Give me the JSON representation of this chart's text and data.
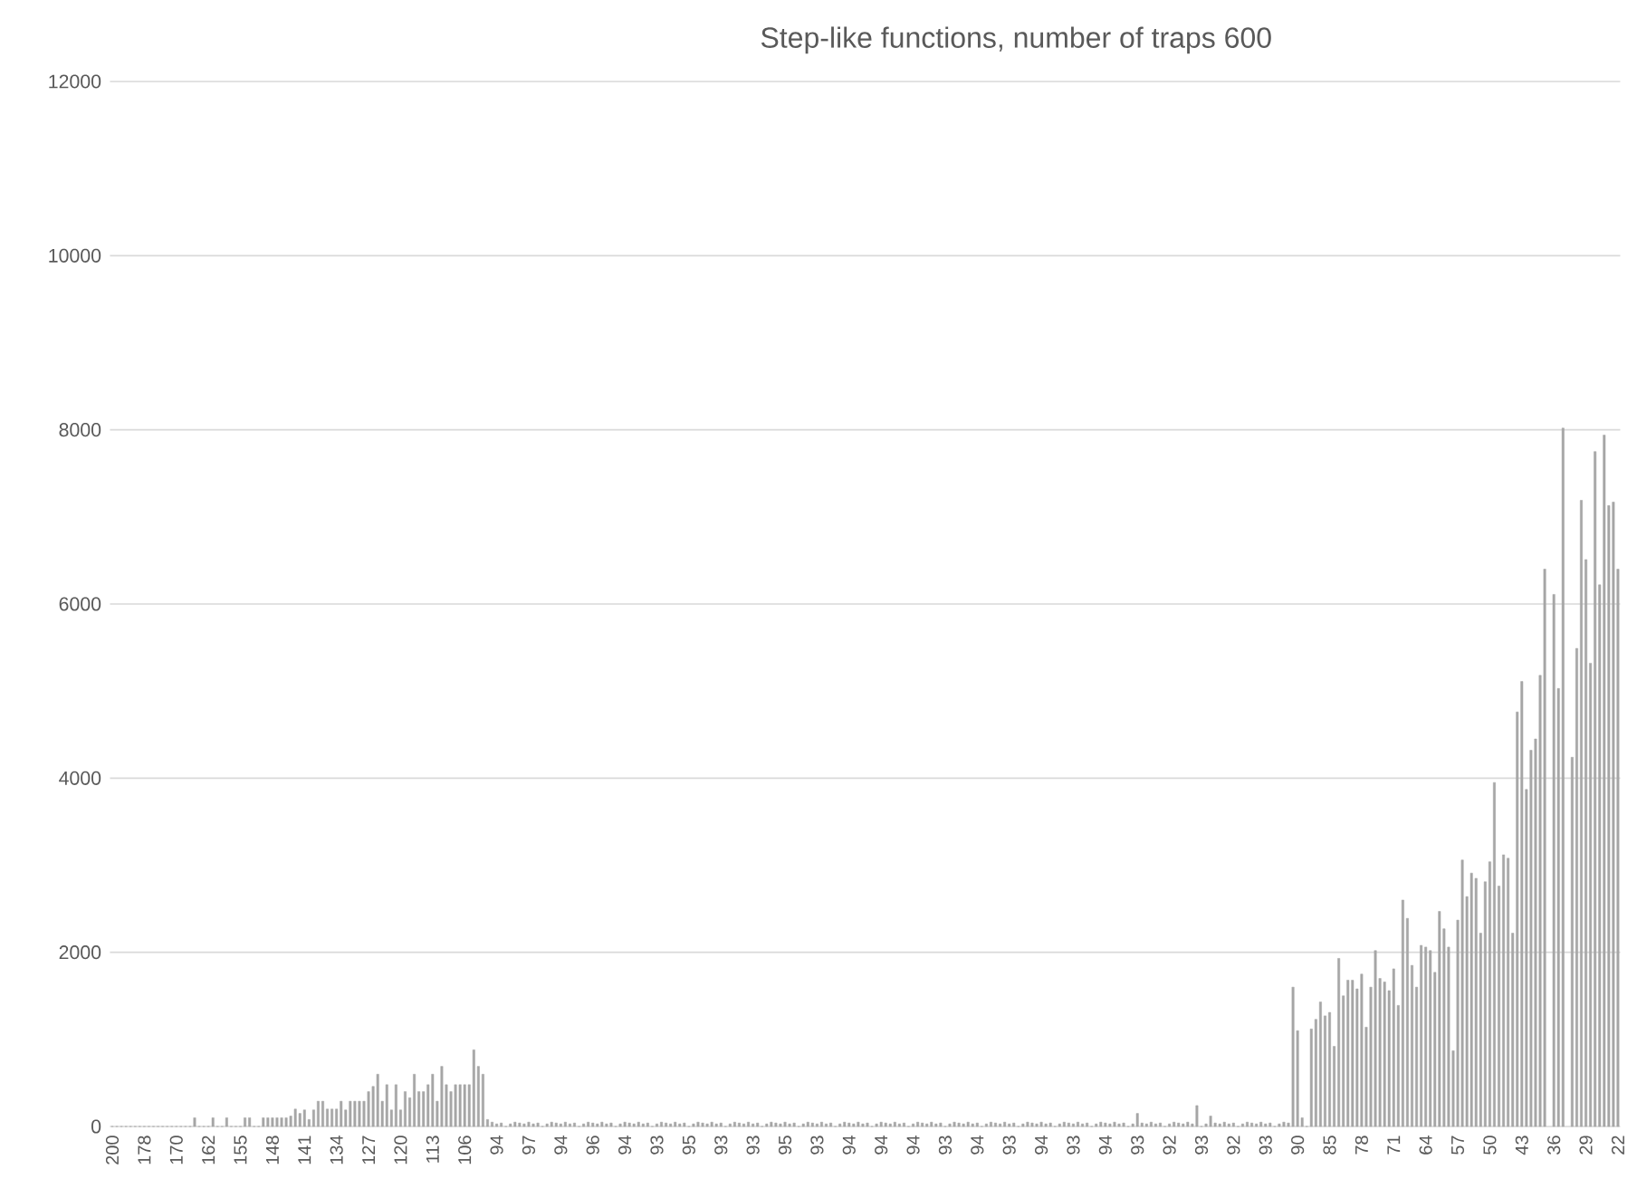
{
  "chart_data": {
    "type": "bar",
    "title": "Step-like functions, number of traps 600",
    "categories": [
      "200",
      null,
      null,
      null,
      null,
      null,
      null,
      "178",
      null,
      null,
      null,
      null,
      null,
      null,
      "170",
      null,
      null,
      null,
      null,
      null,
      null,
      "162",
      null,
      null,
      null,
      null,
      null,
      null,
      "155",
      null,
      null,
      null,
      null,
      null,
      null,
      "148",
      null,
      null,
      null,
      null,
      null,
      null,
      "141",
      null,
      null,
      null,
      null,
      null,
      null,
      "134",
      null,
      null,
      null,
      null,
      null,
      null,
      "127",
      null,
      null,
      null,
      null,
      null,
      null,
      "120",
      null,
      null,
      null,
      null,
      null,
      null,
      "113",
      null,
      null,
      null,
      null,
      null,
      null,
      "106",
      null,
      null,
      null,
      null,
      null,
      null,
      "94",
      null,
      null,
      null,
      null,
      null,
      null,
      "97",
      null,
      null,
      null,
      null,
      null,
      null,
      "94",
      null,
      null,
      null,
      null,
      null,
      null,
      "96",
      null,
      null,
      null,
      null,
      null,
      null,
      "94",
      null,
      null,
      null,
      null,
      null,
      null,
      "93",
      null,
      null,
      null,
      null,
      null,
      null,
      "95",
      null,
      null,
      null,
      null,
      null,
      null,
      "93",
      null,
      null,
      null,
      null,
      null,
      null,
      "93",
      null,
      null,
      null,
      null,
      null,
      null,
      "95",
      null,
      null,
      null,
      null,
      null,
      null,
      "93",
      null,
      null,
      null,
      null,
      null,
      null,
      "94",
      null,
      null,
      null,
      null,
      null,
      null,
      "94",
      null,
      null,
      null,
      null,
      null,
      null,
      "94",
      null,
      null,
      null,
      null,
      null,
      null,
      "93",
      null,
      null,
      null,
      null,
      null,
      null,
      "94",
      null,
      null,
      null,
      null,
      null,
      null,
      "93",
      null,
      null,
      null,
      null,
      null,
      null,
      "94",
      null,
      null,
      null,
      null,
      null,
      null,
      "93",
      null,
      null,
      null,
      null,
      null,
      null,
      "94",
      null,
      null,
      null,
      null,
      null,
      null,
      "93",
      null,
      null,
      null,
      null,
      null,
      null,
      "92",
      null,
      null,
      null,
      null,
      null,
      null,
      "93",
      null,
      null,
      null,
      null,
      null,
      null,
      "92",
      null,
      null,
      null,
      null,
      null,
      null,
      "93",
      null,
      null,
      null,
      null,
      null,
      null,
      "90",
      null,
      null,
      null,
      null,
      null,
      null,
      "85",
      null,
      null,
      null,
      null,
      null,
      null,
      "78",
      null,
      null,
      null,
      null,
      null,
      null,
      "71",
      null,
      null,
      null,
      null,
      null,
      null,
      "64",
      null,
      null,
      null,
      null,
      null,
      null,
      "57",
      null,
      null,
      null,
      null,
      null,
      null,
      "50",
      null,
      null,
      null,
      null,
      null,
      null,
      "43",
      null,
      null,
      null,
      null,
      null,
      null,
      "36",
      null,
      null,
      null,
      null,
      null,
      null,
      "29",
      null,
      null,
      null,
      null,
      null,
      null,
      "22"
    ],
    "values": [
      0,
      0,
      0,
      0,
      0,
      0,
      0,
      0,
      0,
      0,
      0,
      0,
      0,
      0,
      0,
      0,
      0,
      0,
      100,
      0,
      0,
      0,
      100,
      0,
      0,
      100,
      0,
      0,
      0,
      100,
      100,
      0,
      0,
      100,
      100,
      100,
      100,
      100,
      100,
      120,
      200,
      150,
      190,
      80,
      190,
      290,
      290,
      200,
      200,
      200,
      290,
      190,
      290,
      290,
      290,
      290,
      400,
      460,
      600,
      290,
      480,
      190,
      480,
      190,
      400,
      330,
      600,
      400,
      400,
      480,
      600,
      290,
      690,
      480,
      400,
      480,
      480,
      480,
      480,
      880,
      690,
      600,
      80,
      50,
      30,
      40,
      0,
      30,
      50,
      40,
      30,
      50,
      30,
      40,
      0,
      30,
      50,
      40,
      30,
      50,
      30,
      40,
      0,
      30,
      50,
      40,
      30,
      50,
      30,
      40,
      0,
      30,
      50,
      40,
      30,
      50,
      30,
      40,
      0,
      30,
      50,
      40,
      30,
      50,
      30,
      40,
      0,
      30,
      50,
      40,
      30,
      50,
      30,
      40,
      0,
      30,
      50,
      40,
      30,
      50,
      30,
      40,
      0,
      30,
      50,
      40,
      30,
      50,
      30,
      40,
      0,
      30,
      50,
      40,
      30,
      50,
      30,
      40,
      0,
      30,
      50,
      40,
      30,
      50,
      30,
      40,
      0,
      30,
      50,
      40,
      30,
      50,
      30,
      40,
      0,
      30,
      50,
      40,
      30,
      50,
      30,
      40,
      0,
      30,
      50,
      40,
      30,
      50,
      30,
      40,
      0,
      30,
      50,
      40,
      30,
      50,
      30,
      40,
      0,
      30,
      50,
      40,
      30,
      50,
      30,
      40,
      0,
      30,
      50,
      40,
      30,
      50,
      30,
      40,
      0,
      30,
      50,
      40,
      30,
      50,
      30,
      40,
      0,
      30,
      150,
      40,
      30,
      50,
      30,
      40,
      0,
      30,
      50,
      40,
      30,
      50,
      30,
      240,
      0,
      30,
      120,
      40,
      30,
      50,
      30,
      40,
      0,
      30,
      50,
      40,
      30,
      50,
      30,
      40,
      0,
      30,
      50,
      40,
      1600,
      1100,
      100,
      0,
      1120,
      1230,
      1430,
      1270,
      1310,
      920,
      1930,
      1500,
      1680,
      1680,
      1580,
      1750,
      1140,
      1600,
      2020,
      1700,
      1660,
      1560,
      1810,
      1390,
      2600,
      2390,
      1850,
      1600,
      2080,
      2060,
      2020,
      1770,
      2470,
      2270,
      2060,
      870,
      2370,
      3060,
      2640,
      2910,
      2850,
      2220,
      2810,
      3040,
      3950,
      2760,
      3120,
      3080,
      2220,
      4760,
      5110,
      3870,
      4320,
      4450,
      5180,
      6400,
      null,
      6110,
      5030,
      8020,
      null,
      4240,
      5490,
      7190,
      6510,
      5320,
      7750,
      6220,
      7940,
      7130,
      7170,
      6400
    ],
    "color": "#a6a6a6",
    "ylim": [
      0,
      12000
    ],
    "yticks": [
      0,
      2000,
      4000,
      6000,
      8000,
      10000,
      12000
    ],
    "grid": "y"
  }
}
